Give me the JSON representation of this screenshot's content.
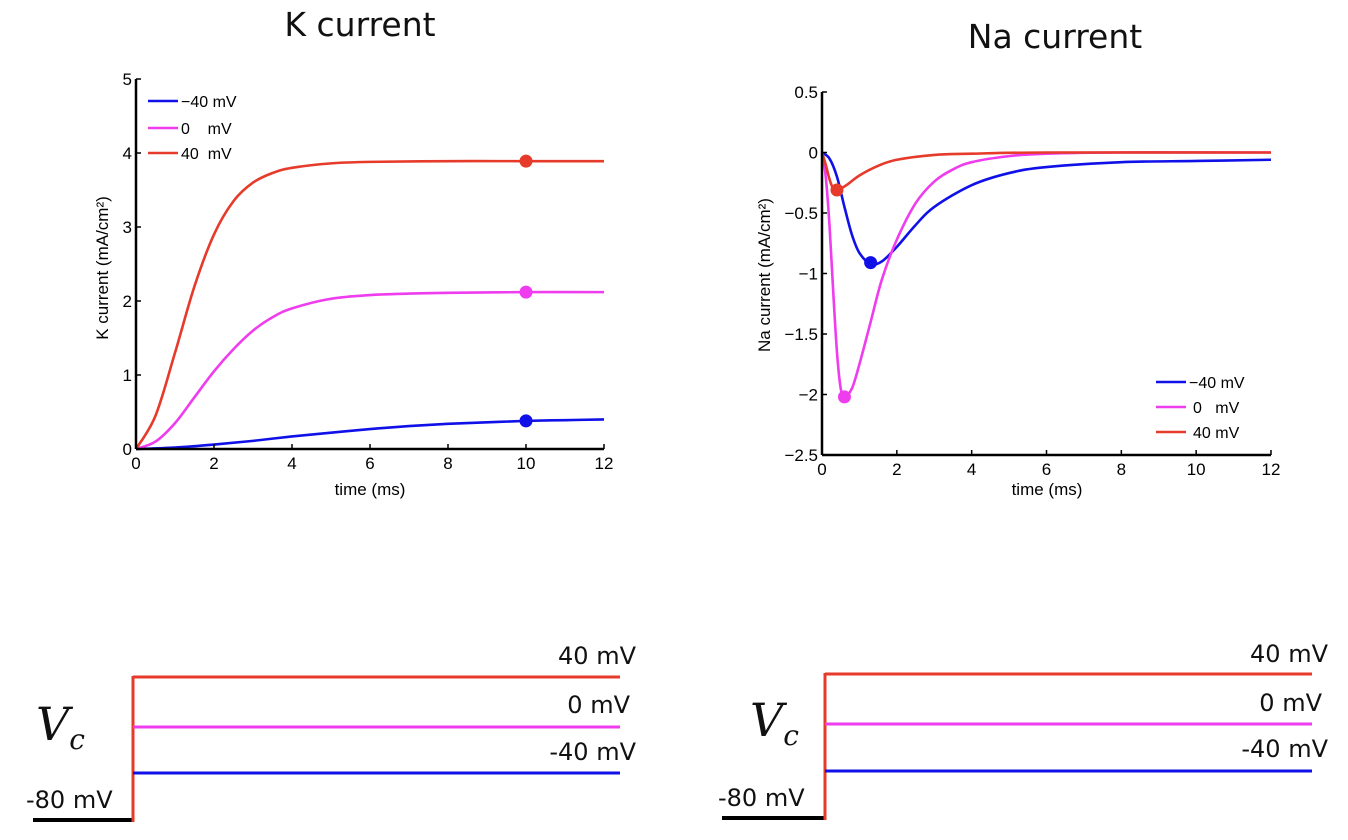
{
  "colors": {
    "neg40": "#1010e8",
    "zero": "#ee3cee",
    "pos40": "#e63a2a"
  },
  "chart_data": [
    {
      "type": "line",
      "title": "K current",
      "xlabel": "time (ms)",
      "ylabel": "K current (mA/cm²)",
      "xlim": [
        0,
        12
      ],
      "ylim": [
        0,
        5
      ],
      "xticks": [
        "0",
        "2",
        "4",
        "6",
        "8",
        "10",
        "12"
      ],
      "yticks": [
        "0",
        "1",
        "2",
        "3",
        "4",
        "5"
      ],
      "legend_position": "top-left",
      "series": [
        {
          "name": "−40 mV",
          "color": "#1010e8",
          "x": [
            0,
            1,
            2,
            3,
            4,
            5,
            6,
            7,
            8,
            9,
            10,
            11,
            12
          ],
          "y": [
            0,
            0.02,
            0.06,
            0.11,
            0.17,
            0.22,
            0.27,
            0.31,
            0.34,
            0.36,
            0.38,
            0.39,
            0.4
          ]
        },
        {
          "name": "0    mV",
          "color": "#ee3cee",
          "x": [
            0,
            0.5,
            1,
            1.5,
            2,
            2.5,
            3,
            3.5,
            4,
            5,
            6,
            7,
            8,
            10,
            12
          ],
          "y": [
            0,
            0.1,
            0.35,
            0.7,
            1.05,
            1.35,
            1.6,
            1.78,
            1.9,
            2.03,
            2.08,
            2.1,
            2.11,
            2.12,
            2.12
          ]
        },
        {
          "name": "40  mV",
          "color": "#e63a2a",
          "x": [
            0,
            0.5,
            1,
            1.5,
            2,
            2.5,
            3,
            3.5,
            4,
            5,
            6,
            8,
            10,
            12
          ],
          "y": [
            0,
            0.45,
            1.3,
            2.2,
            2.9,
            3.35,
            3.6,
            3.73,
            3.8,
            3.86,
            3.88,
            3.89,
            3.89,
            3.89
          ]
        }
      ],
      "markers": [
        {
          "x": 10,
          "y": 0.38,
          "color": "#1010e8"
        },
        {
          "x": 10,
          "y": 2.12,
          "color": "#ee3cee"
        },
        {
          "x": 10,
          "y": 3.89,
          "color": "#e63a2a"
        }
      ]
    },
    {
      "type": "line",
      "title": "Na current",
      "xlabel": "time (ms)",
      "ylabel": "Na current (mA/cm²)",
      "xlim": [
        0,
        12
      ],
      "ylim": [
        -2.5,
        0.5
      ],
      "xticks": [
        "0",
        "2",
        "4",
        "6",
        "8",
        "10",
        "12"
      ],
      "yticks": [
        "−2.5",
        "−2",
        "−1.5",
        "−1",
        "−0.5",
        "0",
        "0.5"
      ],
      "legend_position": "bottom-right",
      "series": [
        {
          "name": "−40 mV",
          "color": "#1010e8",
          "x": [
            0,
            0.2,
            0.4,
            0.6,
            0.8,
            1.0,
            1.3,
            1.6,
            2,
            2.5,
            3,
            4,
            5,
            6,
            8,
            10,
            12
          ],
          "y": [
            0,
            -0.05,
            -0.2,
            -0.45,
            -0.68,
            -0.83,
            -0.92,
            -0.9,
            -0.78,
            -0.6,
            -0.45,
            -0.27,
            -0.17,
            -0.12,
            -0.08,
            -0.07,
            -0.06
          ]
        },
        {
          "name": "0   mV",
          "color": "#ee3cee",
          "x": [
            0,
            0.1,
            0.2,
            0.3,
            0.4,
            0.5,
            0.6,
            0.8,
            1.0,
            1.3,
            1.6,
            2,
            2.5,
            3,
            3.5,
            4,
            5,
            6,
            8,
            12
          ],
          "y": [
            0,
            -0.2,
            -0.6,
            -1.15,
            -1.65,
            -1.95,
            -2.02,
            -1.95,
            -1.75,
            -1.4,
            -1.05,
            -0.72,
            -0.42,
            -0.24,
            -0.14,
            -0.08,
            -0.03,
            -0.01,
            0,
            0
          ]
        },
        {
          "name": "40 mV",
          "color": "#e63a2a",
          "x": [
            0,
            0.1,
            0.2,
            0.3,
            0.4,
            0.5,
            0.7,
            1.0,
            1.5,
            2,
            3,
            4,
            6,
            12
          ],
          "y": [
            0,
            -0.1,
            -0.22,
            -0.3,
            -0.32,
            -0.3,
            -0.26,
            -0.19,
            -0.11,
            -0.06,
            -0.02,
            -0.01,
            0,
            0
          ]
        }
      ],
      "markers": [
        {
          "x": 1.3,
          "y": -0.91,
          "color": "#1010e8"
        },
        {
          "x": 0.6,
          "y": -2.02,
          "color": "#ee3cee"
        },
        {
          "x": 0.4,
          "y": -0.31,
          "color": "#e63a2a"
        }
      ]
    }
  ],
  "protocol": {
    "vc_symbol": "V",
    "vc_subscript": "c",
    "baseline_label": "-80 mV",
    "step_labels": [
      "40 mV",
      "0 mV",
      "-40 mV"
    ]
  }
}
